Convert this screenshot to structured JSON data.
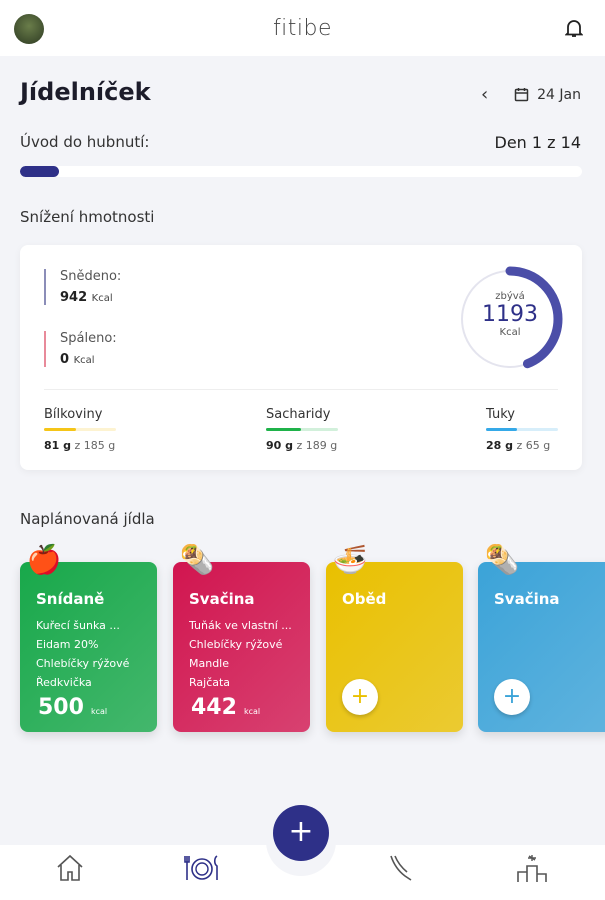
{
  "header": {
    "app_name": "fitibe",
    "avatar_icon": "user-avatar",
    "bell_icon": "bell-icon"
  },
  "page": {
    "title": "Jídelníček",
    "date": "24 Jan"
  },
  "program": {
    "label": "Úvod do hubnutí:",
    "day": "Den 1 z 14",
    "progress_fraction": 0.07
  },
  "goal": {
    "label": "Snížení hmotnosti"
  },
  "summary": {
    "eaten_label": "Snědeno:",
    "eaten_value": "942",
    "eaten_unit": "Kcal",
    "burned_label": "Spáleno:",
    "burned_value": "0",
    "burned_unit": "Kcal",
    "remaining_label": "zbývá",
    "remaining_value": "1193",
    "remaining_unit": "Kcal",
    "ring_fraction": 0.44,
    "macros": [
      {
        "name": "Bílkoviny",
        "value": "81 g",
        "of": "z 185 g",
        "fraction": 0.44,
        "color": "#f5c518"
      },
      {
        "name": "Sacharidy",
        "value": "90 g",
        "of": "z 189 g",
        "fraction": 0.48,
        "color": "#1fb24a"
      },
      {
        "name": "Tuky",
        "value": "28 g",
        "of": "z 65 g",
        "fraction": 0.43,
        "color": "#35a9e8"
      }
    ]
  },
  "meals_section": {
    "label": "Naplánovaná jídla"
  },
  "meals": [
    {
      "title": "Snídaně",
      "items": [
        "Kuřecí šunka ...",
        "Eidam 20%",
        "Chlebíčky rýžové",
        "Ředkvička"
      ],
      "kcal": "500",
      "unit": "kcal",
      "icon": "🍎",
      "color": "#18a84a"
    },
    {
      "title": "Svačina",
      "items": [
        "Tuňák ve vlastní ...",
        "Chlebíčky rýžové",
        "Mandle",
        "Rajčata"
      ],
      "kcal": "442",
      "unit": "kcal",
      "icon": "🌯",
      "color": "#d1154f"
    },
    {
      "title": "Oběd",
      "items": [],
      "add": "+",
      "icon": "🍜",
      "color": "#e9c000"
    },
    {
      "title": "Svačina",
      "items": [],
      "add": "+",
      "icon": "🌯",
      "color": "#3ba3d8"
    }
  ],
  "nav": {
    "fab": "+"
  }
}
